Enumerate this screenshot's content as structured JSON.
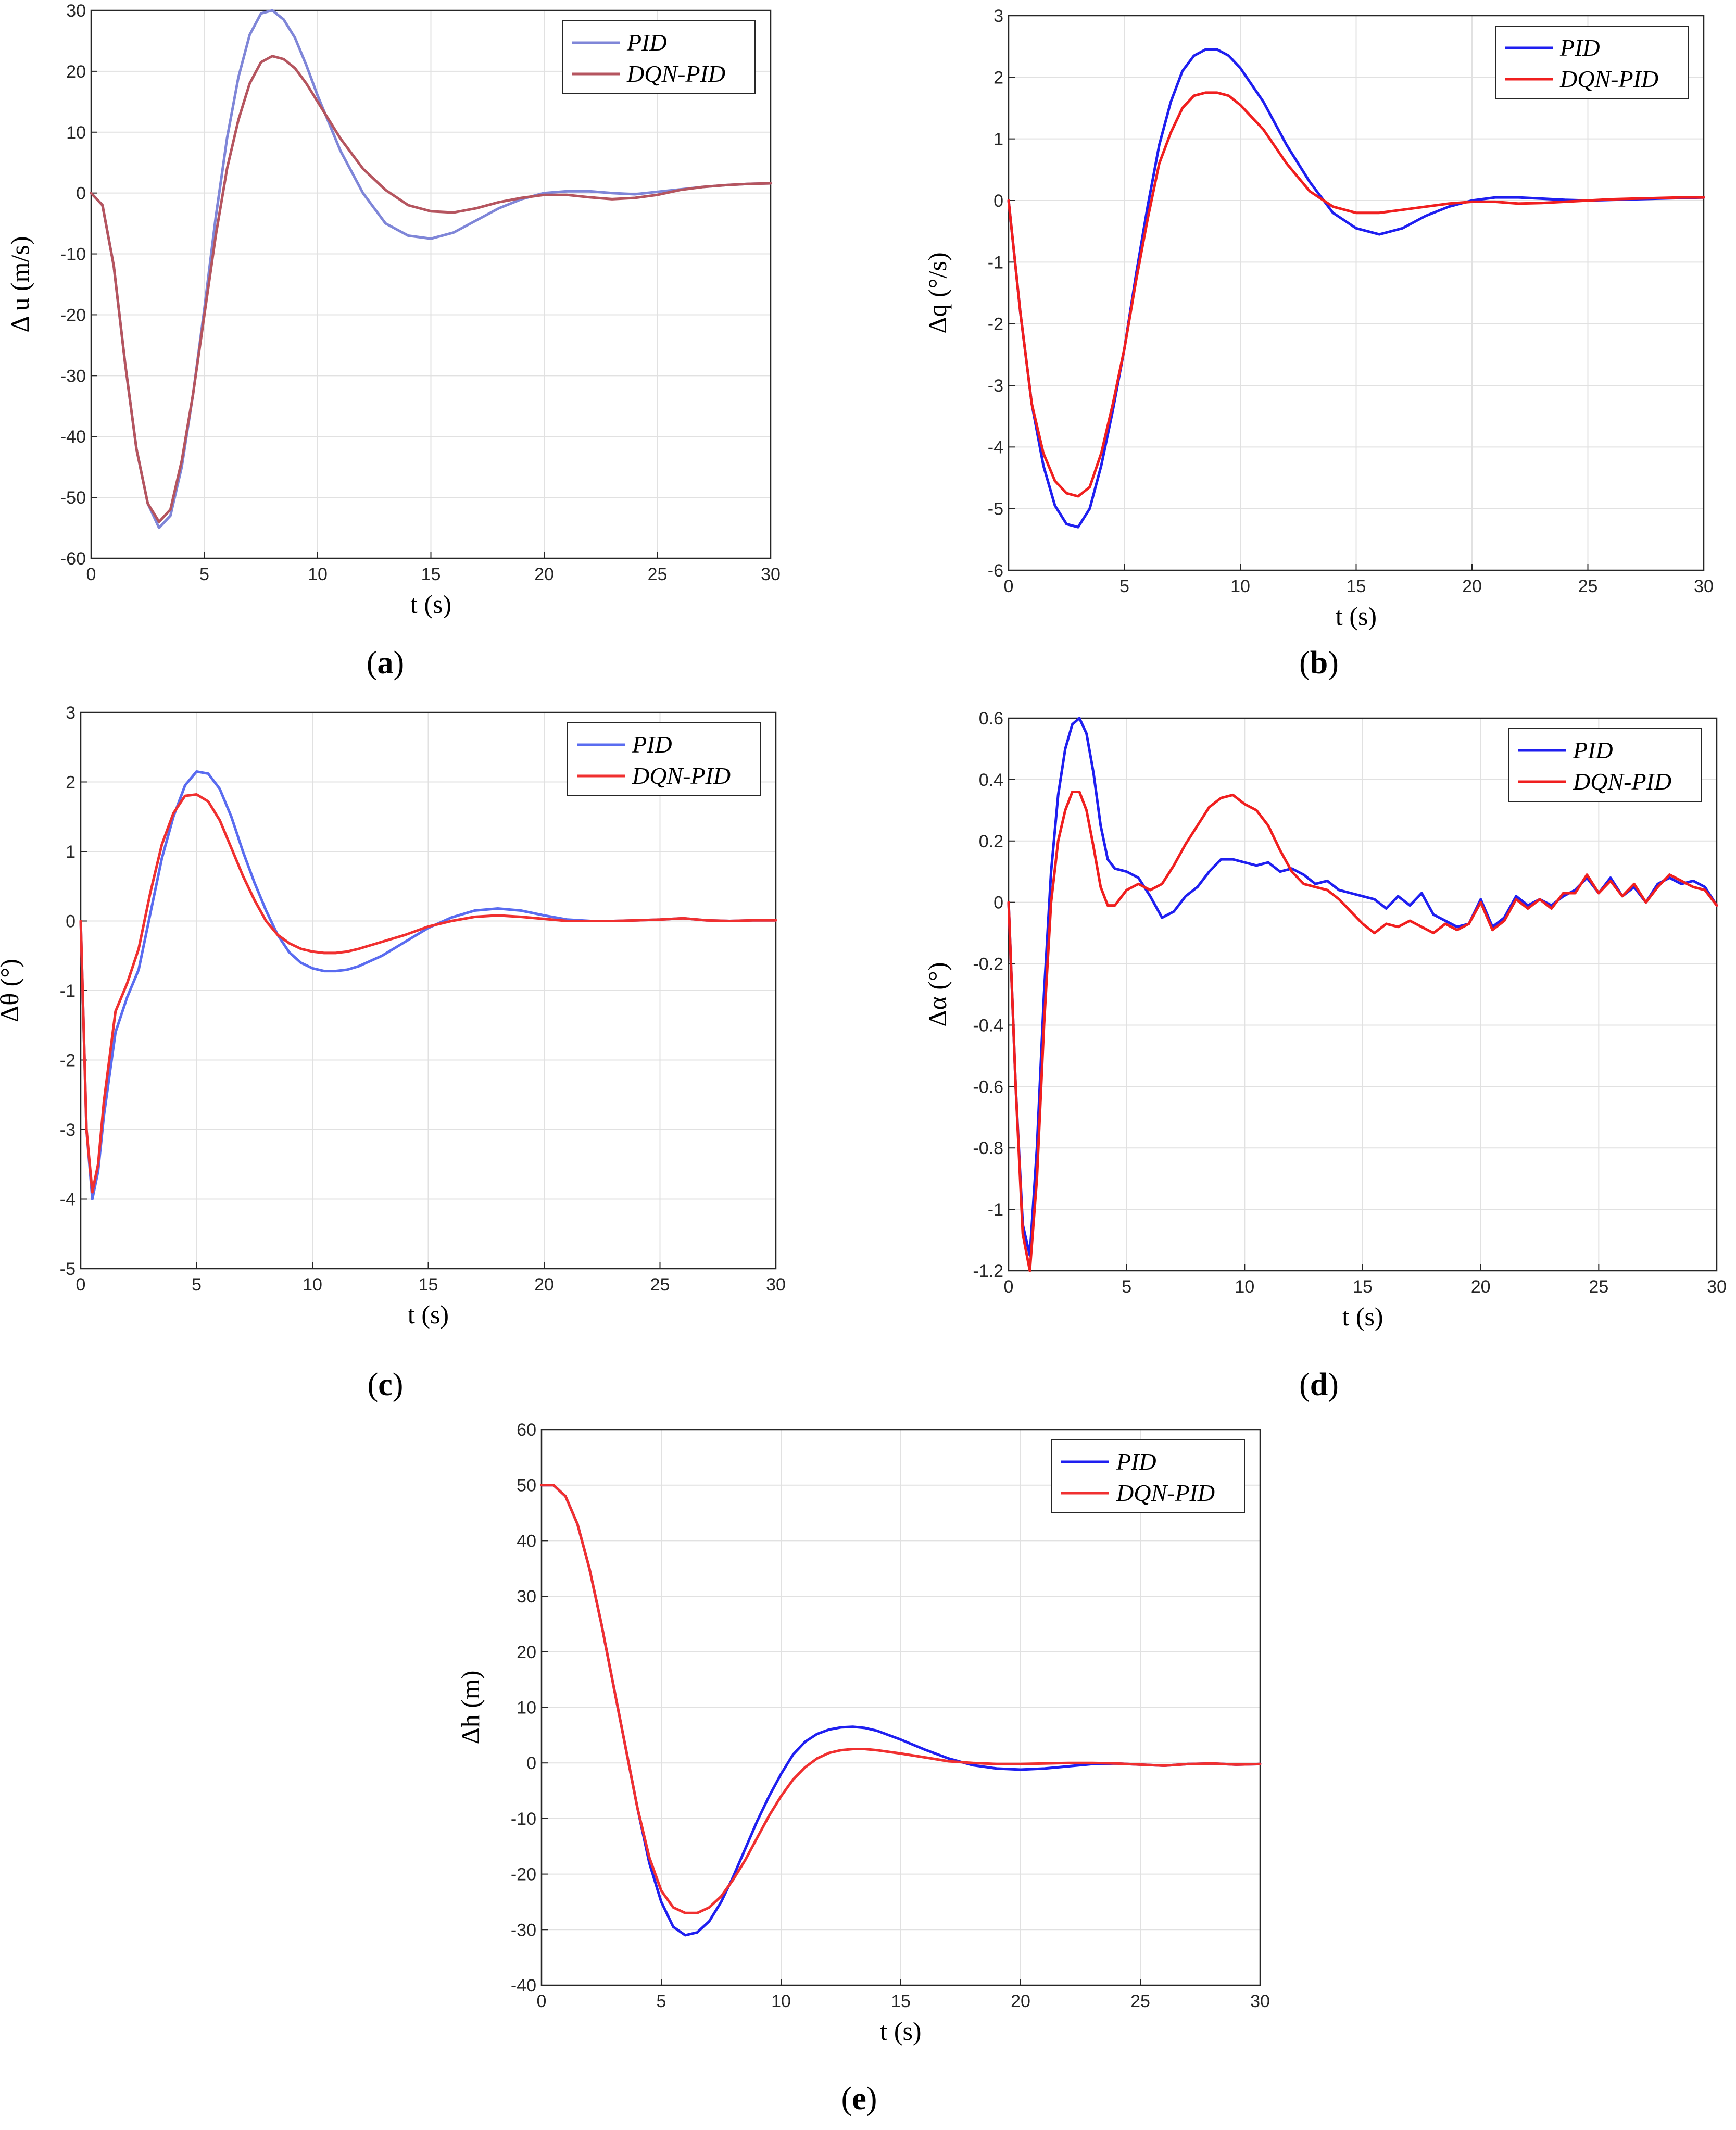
{
  "chart_data": [
    {
      "id": "a",
      "type": "line",
      "caption_letter": "a",
      "xlabel": "t (s)",
      "ylabel": "Δ u (m/s)",
      "xlim": [
        0,
        30
      ],
      "ylim": [
        -60,
        30
      ],
      "xticks": [
        0,
        5,
        10,
        15,
        20,
        25,
        30
      ],
      "yticks": [
        -60,
        -50,
        -40,
        -30,
        -20,
        -10,
        0,
        10,
        20,
        30
      ],
      "grid": true,
      "legend_position": "top-right",
      "x": [
        0,
        0.5,
        1,
        1.5,
        2,
        2.5,
        3,
        3.5,
        4,
        4.5,
        5,
        5.5,
        6,
        6.5,
        7,
        7.5,
        8,
        8.5,
        9,
        9.5,
        10,
        11,
        12,
        13,
        14,
        15,
        16,
        17,
        18,
        19,
        20,
        21,
        22,
        23,
        24,
        25,
        26,
        27,
        28,
        29,
        30
      ],
      "series": [
        {
          "name": "PID",
          "color": "#7f86d8",
          "values": [
            0,
            -2,
            -12,
            -28,
            -42,
            -51,
            -55,
            -53,
            -45,
            -33,
            -19,
            -4,
            9,
            19,
            26,
            29.5,
            30,
            28.5,
            25.5,
            21,
            16,
            7,
            0,
            -5,
            -7,
            -7.5,
            -6.5,
            -4.5,
            -2.5,
            -1,
            0,
            0.3,
            0.3,
            0,
            -0.2,
            0.2,
            0.6,
            1,
            1.3,
            1.5,
            1.6
          ]
        },
        {
          "name": "DQN-PID",
          "color": "#b5555f",
          "values": [
            0,
            -2,
            -12,
            -28,
            -42,
            -51,
            -54,
            -52,
            -44,
            -33,
            -20,
            -7,
            4,
            12,
            18,
            21.5,
            22.5,
            22,
            20.5,
            18,
            15,
            9,
            4,
            0.5,
            -2,
            -3,
            -3.2,
            -2.5,
            -1.5,
            -0.8,
            -0.3,
            -0.3,
            -0.7,
            -1,
            -0.8,
            -0.3,
            0.5,
            1,
            1.3,
            1.5,
            1.6
          ]
        }
      ]
    },
    {
      "id": "b",
      "type": "line",
      "caption_letter": "b",
      "xlabel": "t (s)",
      "ylabel": "Δq (°/s)",
      "xlim": [
        0,
        30
      ],
      "ylim": [
        -6,
        3
      ],
      "xticks": [
        0,
        5,
        10,
        15,
        20,
        25,
        30
      ],
      "yticks": [
        -6,
        -5,
        -4,
        -3,
        -2,
        -1,
        0,
        1,
        2,
        3
      ],
      "grid": true,
      "legend_position": "top-right",
      "x": [
        0,
        0.5,
        1,
        1.5,
        2,
        2.5,
        3,
        3.5,
        4,
        4.5,
        5,
        5.5,
        6,
        6.5,
        7,
        7.5,
        8,
        8.5,
        9,
        9.5,
        10,
        11,
        12,
        13,
        14,
        15,
        16,
        17,
        18,
        19,
        20,
        21,
        22,
        23,
        24,
        25,
        26,
        27,
        28,
        29,
        30
      ],
      "series": [
        {
          "name": "PID",
          "color": "#1f1ff0",
          "values": [
            0,
            -1.8,
            -3.3,
            -4.3,
            -4.95,
            -5.25,
            -5.3,
            -5.0,
            -4.3,
            -3.4,
            -2.4,
            -1.2,
            -0.1,
            0.9,
            1.6,
            2.1,
            2.35,
            2.45,
            2.45,
            2.35,
            2.15,
            1.6,
            0.9,
            0.3,
            -0.2,
            -0.45,
            -0.55,
            -0.45,
            -0.25,
            -0.1,
            0,
            0.05,
            0.05,
            0.03,
            0.01,
            0,
            0.01,
            0.02,
            0.03,
            0.04,
            0.05
          ]
        },
        {
          "name": "DQN-PID",
          "color": "#f01f1f",
          "values": [
            0,
            -1.8,
            -3.3,
            -4.1,
            -4.55,
            -4.75,
            -4.8,
            -4.65,
            -4.1,
            -3.3,
            -2.4,
            -1.3,
            -0.3,
            0.6,
            1.1,
            1.5,
            1.7,
            1.75,
            1.75,
            1.7,
            1.55,
            1.15,
            0.6,
            0.15,
            -0.1,
            -0.2,
            -0.2,
            -0.15,
            -0.1,
            -0.05,
            -0.02,
            -0.02,
            -0.05,
            -0.04,
            -0.02,
            0,
            0.02,
            0.03,
            0.04,
            0.05,
            0.05
          ]
        }
      ]
    },
    {
      "id": "c",
      "type": "line",
      "caption_letter": "c",
      "xlabel": "t (s)",
      "ylabel": "Δθ (°)",
      "xlim": [
        0,
        30
      ],
      "ylim": [
        -5,
        3
      ],
      "xticks": [
        0,
        5,
        10,
        15,
        20,
        25,
        30
      ],
      "yticks": [
        -5,
        -4,
        -3,
        -2,
        -1,
        0,
        1,
        2,
        3
      ],
      "grid": true,
      "legend_position": "top-right",
      "x": [
        0,
        0.25,
        0.5,
        0.75,
        1,
        1.5,
        2,
        2.5,
        3,
        3.5,
        4,
        4.5,
        5,
        5.5,
        6,
        6.5,
        7,
        7.5,
        8,
        8.5,
        9,
        9.5,
        10,
        10.5,
        11,
        11.5,
        12,
        13,
        14,
        15,
        16,
        17,
        18,
        19,
        20,
        21,
        22,
        23,
        24,
        25,
        26,
        27,
        28,
        29,
        30
      ],
      "series": [
        {
          "name": "PID",
          "color": "#5a6cf0",
          "values": [
            0,
            -3,
            -4.0,
            -3.6,
            -2.8,
            -1.6,
            -1.1,
            -0.7,
            0.1,
            0.9,
            1.5,
            1.95,
            2.15,
            2.12,
            1.9,
            1.5,
            1.0,
            0.55,
            0.15,
            -0.2,
            -0.45,
            -0.6,
            -0.68,
            -0.72,
            -0.72,
            -0.7,
            -0.65,
            -0.5,
            -0.3,
            -0.1,
            0.05,
            0.15,
            0.18,
            0.15,
            0.08,
            0.02,
            0,
            0,
            0.01,
            0.02,
            0.04,
            0.01,
            0,
            0.01,
            0.01
          ]
        },
        {
          "name": "DQN-PID",
          "color": "#f03030",
          "values": [
            0,
            -3,
            -3.9,
            -3.5,
            -2.6,
            -1.3,
            -0.9,
            -0.4,
            0.4,
            1.1,
            1.55,
            1.8,
            1.82,
            1.72,
            1.45,
            1.05,
            0.65,
            0.3,
            0,
            -0.2,
            -0.32,
            -0.4,
            -0.44,
            -0.46,
            -0.46,
            -0.44,
            -0.4,
            -0.3,
            -0.2,
            -0.08,
            0,
            0.06,
            0.08,
            0.06,
            0.03,
            0,
            0,
            0,
            0.01,
            0.02,
            0.04,
            0.01,
            0,
            0.01,
            0.01
          ]
        }
      ]
    },
    {
      "id": "d",
      "type": "line",
      "caption_letter": "d",
      "xlabel": "t (s)",
      "ylabel": "Δα (°)",
      "xlim": [
        0,
        30
      ],
      "ylim": [
        -1.2,
        0.6
      ],
      "xticks": [
        0,
        5,
        10,
        15,
        20,
        25,
        30
      ],
      "yticks": [
        -1.2,
        -1,
        -0.8,
        -0.6,
        -0.4,
        -0.2,
        0,
        0.2,
        0.4,
        0.6
      ],
      "ytick_labels": [
        "-1.2",
        "-1",
        "-0.8",
        "-0.6",
        "-0.4",
        "-0.2",
        "0",
        "0.2",
        "0.4",
        "0.6"
      ],
      "grid": true,
      "legend_position": "top-right",
      "x": [
        0,
        0.3,
        0.6,
        0.9,
        1.2,
        1.5,
        1.8,
        2.1,
        2.4,
        2.7,
        3.0,
        3.3,
        3.6,
        3.9,
        4.2,
        4.5,
        5.0,
        5.5,
        6.0,
        6.5,
        7.0,
        7.5,
        8.0,
        8.5,
        9.0,
        9.5,
        10.0,
        10.5,
        11.0,
        11.5,
        12.0,
        12.5,
        13.0,
        13.5,
        14.0,
        14.5,
        15.0,
        15.5,
        16.0,
        16.5,
        17.0,
        17.5,
        18.0,
        18.5,
        19.0,
        19.5,
        20.0,
        20.5,
        21.0,
        21.5,
        22.0,
        22.5,
        23.0,
        23.5,
        24.0,
        24.5,
        25.0,
        25.5,
        26.0,
        26.5,
        27.0,
        27.5,
        28.0,
        28.5,
        29.0,
        29.5,
        30.0
      ],
      "series": [
        {
          "name": "PID",
          "color": "#1f1ff0",
          "values": [
            0,
            -0.6,
            -1.05,
            -1.15,
            -0.8,
            -0.3,
            0.1,
            0.35,
            0.5,
            0.58,
            0.6,
            0.55,
            0.42,
            0.25,
            0.14,
            0.11,
            0.1,
            0.08,
            0.02,
            -0.05,
            -0.03,
            0.02,
            0.05,
            0.1,
            0.14,
            0.14,
            0.13,
            0.12,
            0.13,
            0.1,
            0.11,
            0.09,
            0.06,
            0.07,
            0.04,
            0.03,
            0.02,
            0.01,
            -0.02,
            0.02,
            -0.01,
            0.03,
            -0.04,
            -0.06,
            -0.08,
            -0.07,
            0.01,
            -0.08,
            -0.05,
            0.02,
            -0.01,
            0.01,
            -0.01,
            0.02,
            0.04,
            0.08,
            0.03,
            0.08,
            0.02,
            0.05,
            0.0,
            0.06,
            0.08,
            0.06,
            0.07,
            0.05,
            -0.01
          ]
        },
        {
          "name": "DQN-PID",
          "color": "#f01f1f",
          "values": [
            0,
            -0.6,
            -1.08,
            -1.2,
            -0.9,
            -0.4,
            0.0,
            0.2,
            0.3,
            0.36,
            0.36,
            0.3,
            0.18,
            0.05,
            -0.01,
            -0.01,
            0.04,
            0.06,
            0.04,
            0.06,
            0.12,
            0.19,
            0.25,
            0.31,
            0.34,
            0.35,
            0.32,
            0.3,
            0.25,
            0.17,
            0.1,
            0.06,
            0.05,
            0.04,
            0.01,
            -0.03,
            -0.07,
            -0.1,
            -0.07,
            -0.08,
            -0.06,
            -0.08,
            -0.1,
            -0.07,
            -0.09,
            -0.07,
            0.0,
            -0.09,
            -0.06,
            0.01,
            -0.02,
            0.01,
            -0.02,
            0.03,
            0.03,
            0.09,
            0.03,
            0.07,
            0.02,
            0.06,
            0.0,
            0.05,
            0.09,
            0.07,
            0.05,
            0.04,
            -0.01
          ]
        }
      ]
    },
    {
      "id": "e",
      "type": "line",
      "caption_letter": "e",
      "xlabel": "t (s)",
      "ylabel": "Δh (m)",
      "xlim": [
        0,
        30
      ],
      "ylim": [
        -40,
        60
      ],
      "xticks": [
        0,
        5,
        10,
        15,
        20,
        25,
        30
      ],
      "yticks": [
        -40,
        -30,
        -20,
        -10,
        0,
        10,
        20,
        30,
        40,
        50,
        60
      ],
      "grid": true,
      "legend_position": "top-right",
      "x": [
        0,
        0.5,
        1,
        1.5,
        2,
        2.5,
        3,
        3.5,
        4,
        4.5,
        5,
        5.5,
        6,
        6.5,
        7,
        7.5,
        8,
        8.5,
        9,
        9.5,
        10,
        10.5,
        11,
        11.5,
        12,
        12.5,
        13,
        13.5,
        14,
        15,
        16,
        17,
        18,
        19,
        20,
        21,
        22,
        23,
        24,
        25,
        26,
        27,
        28,
        29,
        30
      ],
      "series": [
        {
          "name": "PID",
          "color": "#1f1ff0",
          "values": [
            50,
            50,
            48,
            43,
            35,
            25,
            14,
            3,
            -8,
            -18,
            -25,
            -29.5,
            -31,
            -30.5,
            -28.5,
            -25,
            -20.5,
            -15.5,
            -10.5,
            -6,
            -2,
            1.5,
            3.8,
            5.2,
            6,
            6.4,
            6.5,
            6.3,
            5.8,
            4.2,
            2.4,
            0.8,
            -0.4,
            -1,
            -1.2,
            -1,
            -0.6,
            -0.2,
            -0.1,
            -0.3,
            -0.5,
            -0.2,
            -0.1,
            -0.3,
            -0.2
          ]
        },
        {
          "name": "DQN-PID",
          "color": "#f03030",
          "values": [
            50,
            50,
            48,
            43,
            35,
            25,
            14,
            3,
            -8,
            -17,
            -23,
            -26,
            -27,
            -27,
            -26,
            -24,
            -21,
            -17.5,
            -13.5,
            -9.5,
            -6,
            -3,
            -0.8,
            0.8,
            1.8,
            2.3,
            2.5,
            2.5,
            2.3,
            1.7,
            1.0,
            0.3,
            0,
            -0.2,
            -0.2,
            -0.1,
            0,
            0,
            -0.1,
            -0.3,
            -0.5,
            -0.2,
            -0.1,
            -0.3,
            -0.2
          ]
        }
      ]
    }
  ]
}
